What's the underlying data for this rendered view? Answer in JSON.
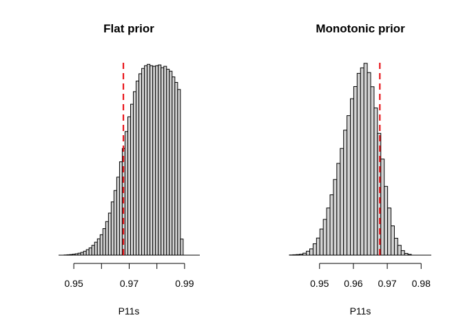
{
  "chart_data": [
    {
      "type": "histogram",
      "title": "Flat prior",
      "xlabel": "P11s",
      "ylabel": "",
      "xlim": [
        0.9445,
        0.9955
      ],
      "ylim": [
        0,
        1
      ],
      "bin_start": 0.9465,
      "bin_width": 0.001,
      "values": [
        0.001,
        0.002,
        0.003,
        0.005,
        0.007,
        0.01,
        0.014,
        0.02,
        0.028,
        0.037,
        0.05,
        0.066,
        0.083,
        0.104,
        0.135,
        0.171,
        0.214,
        0.271,
        0.329,
        0.397,
        0.475,
        0.543,
        0.629,
        0.704,
        0.768,
        0.832,
        0.886,
        0.923,
        0.95,
        0.964,
        0.971,
        0.964,
        0.961,
        0.964,
        0.968,
        0.954,
        0.961,
        0.946,
        0.936,
        0.907,
        0.879,
        0.843,
        0.082
      ],
      "ticks": [
        0.95,
        0.96,
        0.97,
        0.98,
        0.99
      ],
      "tick_labels": [
        "0.95",
        "",
        "0.97",
        "",
        "0.99"
      ],
      "reference_line": {
        "x": 0.9679,
        "color": "#e8141a"
      },
      "grid": false
    },
    {
      "type": "histogram",
      "title": "Monotonic prior",
      "xlabel": "P11s",
      "ylabel": "",
      "xlim": [
        0.9413,
        0.983
      ],
      "ylim": [
        0,
        1
      ],
      "bin_start": 0.9411,
      "bin_width": 0.001,
      "values": [
        0.001,
        0.002,
        0.003,
        0.005,
        0.01,
        0.02,
        0.032,
        0.058,
        0.087,
        0.133,
        0.182,
        0.24,
        0.307,
        0.385,
        0.467,
        0.543,
        0.636,
        0.71,
        0.796,
        0.858,
        0.925,
        0.953,
        0.976,
        0.929,
        0.857,
        0.749,
        0.62,
        0.489,
        0.35,
        0.24,
        0.149,
        0.086,
        0.05,
        0.023,
        0.009,
        0.004
      ],
      "ticks": [
        0.95,
        0.96,
        0.97,
        0.98
      ],
      "tick_labels": [
        "0.95",
        "0.96",
        "0.97",
        "0.98"
      ],
      "reference_line": {
        "x": 0.9678,
        "color": "#e8141a"
      },
      "grid": false
    }
  ]
}
